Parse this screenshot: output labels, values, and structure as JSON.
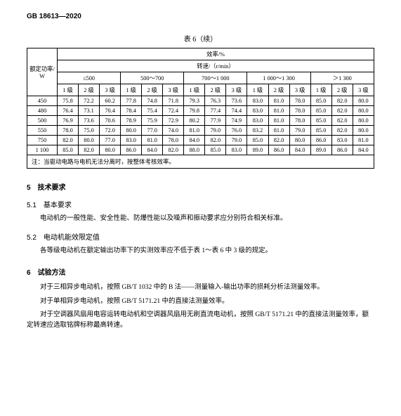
{
  "header": {
    "std_id": "GB 18613—2020"
  },
  "table": {
    "caption": "表 6（续）",
    "col_power": "额定功率/\nW",
    "col_eff": "效率/%",
    "col_speed": "转速/（r/min）",
    "speed_groups": [
      "≤500",
      "500～700",
      "700～1 000",
      "1 000～1 300",
      "＞1 300"
    ],
    "levels": [
      "1 级",
      "2 级",
      "3 级"
    ],
    "rows": [
      {
        "p": "450",
        "v": [
          "75.8",
          "72.2",
          "60.2",
          "77.8",
          "74.8",
          "71.8",
          "79.3",
          "76.3",
          "73.6",
          "83.0",
          "81.0",
          "78.0",
          "85.0",
          "82.0",
          "80.0"
        ]
      },
      {
        "p": "480",
        "v": [
          "76.4",
          "73.1",
          "70.4",
          "78.4",
          "75.4",
          "72.4",
          "79.8",
          "77.4",
          "74.4",
          "83.0",
          "81.0",
          "78.0",
          "85.0",
          "82.0",
          "80.0"
        ]
      },
      {
        "p": "500",
        "v": [
          "76.9",
          "73.6",
          "70.6",
          "78.9",
          "75.9",
          "72.9",
          "80.2",
          "77.9",
          "74.9",
          "83.0",
          "81.0",
          "78.0",
          "85.0",
          "82.0",
          "80.0"
        ]
      },
      {
        "p": "550",
        "v": [
          "78.0",
          "75.0",
          "72.0",
          "80.0",
          "77.0",
          "74.0",
          "81.0",
          "79.0",
          "76.0",
          "83.2",
          "81.0",
          "79.0",
          "85.0",
          "82.0",
          "80.0"
        ]
      },
      {
        "p": "750",
        "v": [
          "82.0",
          "80.0",
          "77.0",
          "83.0",
          "81.0",
          "78.0",
          "84.0",
          "82.0",
          "79.0",
          "85.0",
          "82.0",
          "80.0",
          "86.0",
          "83.0",
          "81.0"
        ]
      },
      {
        "p": "1 100",
        "v": [
          "85.0",
          "82.0",
          "80.0",
          "86.0",
          "84.0",
          "82.0",
          "88.0",
          "85.0",
          "83.0",
          "89.0",
          "86.0",
          "84.0",
          "89.0",
          "86.0",
          "84.0"
        ]
      }
    ],
    "note": "注：当驱动电路与电机无法分离时，按整体考核效率。"
  },
  "secs": {
    "s5": "5　技术要求",
    "s51": "5.1　基本要求",
    "p51": "电动机的一般性能、安全性能、防爆性能以及噪声和振动要求应分别符合相关标准。",
    "s52": "5.2　电动机能效限定值",
    "p52": "各等级电动机在额定输出功率下的实测效率应不低于表 1～表 6 中 3 级的规定。",
    "s6": "6　试验方法",
    "p61": "对于三相异步电动机，按照 GB/T 1032 中的 B 法——测量输入-输出功率的损耗分析法测量效率。",
    "p62": "对于单相异步电动机，按照 GB/T 5171.21 中的直接法测量效率。",
    "p63": "对于空调器风扇用电容运转电动机和空调器风扇用无刷直流电动机，按照 GB/T 5171.21 中的直接法测量效率，额定转速应选取铭牌标称最高转速。"
  }
}
